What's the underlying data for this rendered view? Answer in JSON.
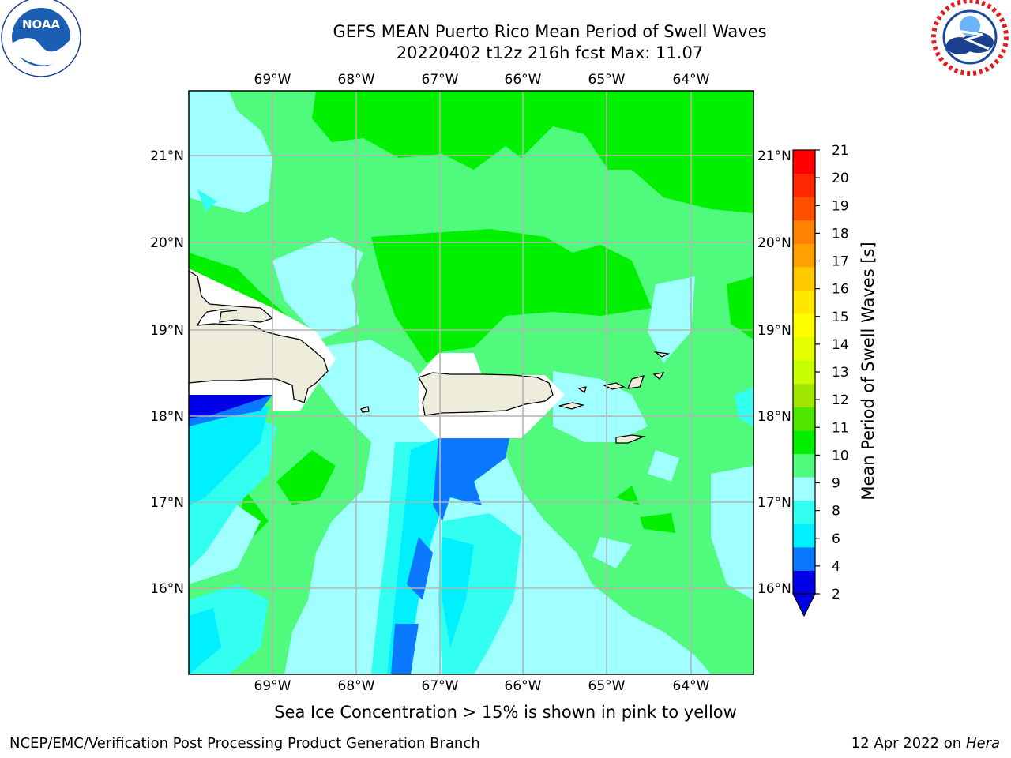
{
  "header": {
    "title_line1": "GEFS MEAN Puerto Rico Mean Period of Swell Waves",
    "title_line2": "20220402 t12z 216h fcst   Max: 11.07"
  },
  "logos": {
    "left": {
      "name": "noaa-logo",
      "text": "NOAA",
      "ring_text": "NATIONAL OCEANIC AND ATMOSPHERIC ADMINISTRATION · U.S. DEPARTMENT OF COMMERCE"
    },
    "right": {
      "name": "nws-logo",
      "ring_text": "NATIONAL WEATHER SERVICE"
    }
  },
  "map": {
    "lon_ticks": [
      "69°W",
      "68°W",
      "67°W",
      "66°W",
      "65°W",
      "64°W"
    ],
    "lat_ticks": [
      "21°N",
      "20°N",
      "19°N",
      "18°N",
      "17°N",
      "16°N"
    ],
    "land_color": "#eeecdb",
    "grid_color": "#b4b4b4"
  },
  "colorbar": {
    "label": "Mean Period of Swell Waves [s]",
    "ticks": [
      "21",
      "20",
      "19",
      "18",
      "17",
      "16",
      "15",
      "14",
      "13",
      "12",
      "11",
      "10",
      "9",
      "8",
      "6",
      "4",
      "2"
    ],
    "colors": [
      "#0000e6",
      "#0a78ff",
      "#00f0ff",
      "#32fff0",
      "#a0ffff",
      "#50fa7d",
      "#00f000",
      "#50e600",
      "#a0e600",
      "#c8ff00",
      "#e6ff00",
      "#ffff00",
      "#ffe600",
      "#ffc800",
      "#ffa000",
      "#ff8200",
      "#ff5000",
      "#ff2800",
      "#ff0000"
    ]
  },
  "note": "Sea Ice Concentration > 15% is shown in pink to yellow",
  "footer": {
    "left": "NCEP/EMC/Verification Post Processing Product Generation Branch",
    "date": "12 Apr 2022 on ",
    "machine": "Hera"
  }
}
